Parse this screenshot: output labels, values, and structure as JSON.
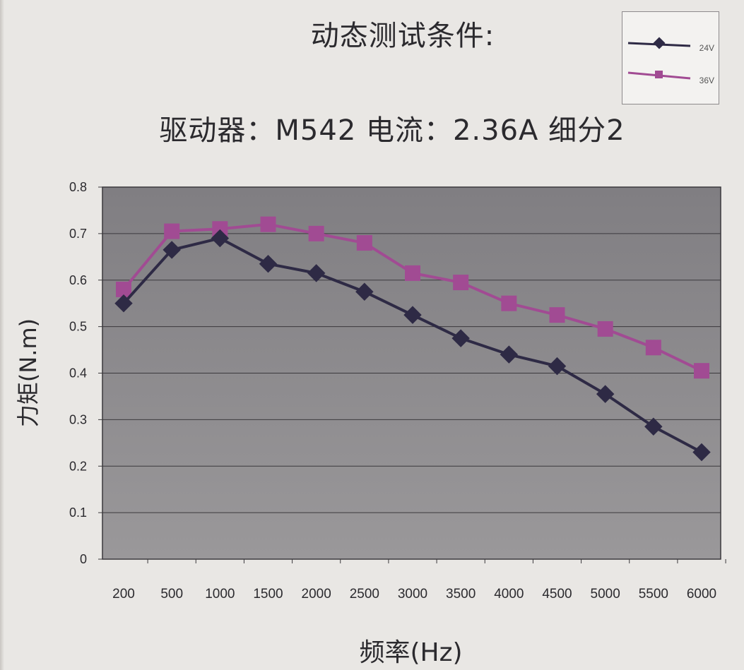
{
  "header": {
    "title": "动态测试条件:",
    "conditions": "驱动器：M542  电流：2.36A  细分2"
  },
  "colors": {
    "series_24v": "#2e2a45",
    "series_36v": "#a14b93",
    "plot_bg": "#8e8c8f"
  },
  "chart_data": {
    "type": "line",
    "title": "动态测试条件:",
    "subtitle": "驱动器：M542  电流：2.36A  细分2",
    "xlabel": "频率(Hz)",
    "ylabel": "力矩(N.m)",
    "ylim": [
      0,
      0.8
    ],
    "yticks": [
      "0",
      "0.1",
      "0.2",
      "0.3",
      "0.4",
      "0.5",
      "0.6",
      "0.7",
      "0.8"
    ],
    "categories": [
      "200",
      "500",
      "1000",
      "1500",
      "2000",
      "2500",
      "3000",
      "3500",
      "4000",
      "4500",
      "5000",
      "5500",
      "6000"
    ],
    "grid": true,
    "legend_position": "top-right",
    "series": [
      {
        "name": "24V",
        "marker": "diamond",
        "values": [
          0.55,
          0.665,
          0.69,
          0.635,
          0.615,
          0.575,
          0.525,
          0.475,
          0.44,
          0.415,
          0.355,
          0.285,
          0.23
        ]
      },
      {
        "name": "36V",
        "marker": "square",
        "values": [
          0.58,
          0.705,
          0.71,
          0.72,
          0.7,
          0.68,
          0.615,
          0.595,
          0.55,
          0.525,
          0.495,
          0.455,
          0.405
        ]
      }
    ]
  }
}
